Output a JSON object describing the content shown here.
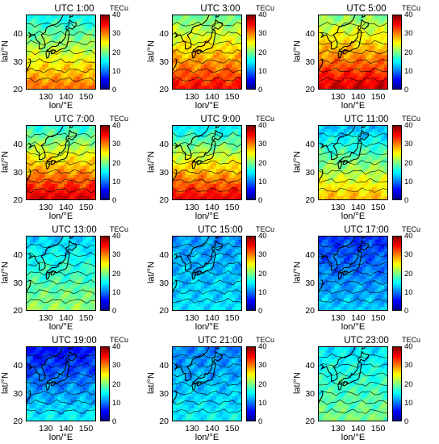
{
  "chart_data": {
    "type": "heatmap",
    "variable_unit": "TECu",
    "xlabel": "lon/°E",
    "ylabel": "lat/°N",
    "xticks": [
      130,
      140,
      150
    ],
    "yticks": [
      20,
      30,
      40
    ],
    "xlim": [
      120,
      155
    ],
    "ylim": [
      20,
      47
    ],
    "colorbar": {
      "label": "TECu",
      "range": [
        0,
        40
      ],
      "ticks": [
        0,
        10,
        20,
        30,
        40
      ]
    },
    "contour_lines": true,
    "coastlines": true,
    "panels": [
      {
        "title": "UTC 1:00",
        "tec_south": 31,
        "tec_north": 15,
        "tec_mean": 22
      },
      {
        "title": "UTC 3:00",
        "tec_south": 35,
        "tec_north": 19,
        "tec_mean": 26
      },
      {
        "title": "UTC 5:00",
        "tec_south": 37,
        "tec_north": 20,
        "tec_mean": 27
      },
      {
        "title": "UTC 7:00",
        "tec_south": 37,
        "tec_north": 16,
        "tec_mean": 26
      },
      {
        "title": "UTC 9:00",
        "tec_south": 36,
        "tec_north": 14,
        "tec_mean": 24
      },
      {
        "title": "UTC 11:00",
        "tec_south": 28,
        "tec_north": 12,
        "tec_mean": 17
      },
      {
        "title": "UTC 13:00",
        "tec_south": 21,
        "tec_north": 13,
        "tec_mean": 15
      },
      {
        "title": "UTC 15:00",
        "tec_south": 14,
        "tec_north": 11,
        "tec_mean": 12
      },
      {
        "title": "UTC 17:00",
        "tec_south": 13,
        "tec_north": 7,
        "tec_mean": 10
      },
      {
        "title": "UTC 19:00",
        "tec_south": 15,
        "tec_north": 5,
        "tec_mean": 10
      },
      {
        "title": "UTC 21:00",
        "tec_south": 15,
        "tec_north": 10,
        "tec_mean": 12
      },
      {
        "title": "UTC 23:00",
        "tec_south": 20,
        "tec_north": 14,
        "tec_mean": 17
      }
    ]
  }
}
